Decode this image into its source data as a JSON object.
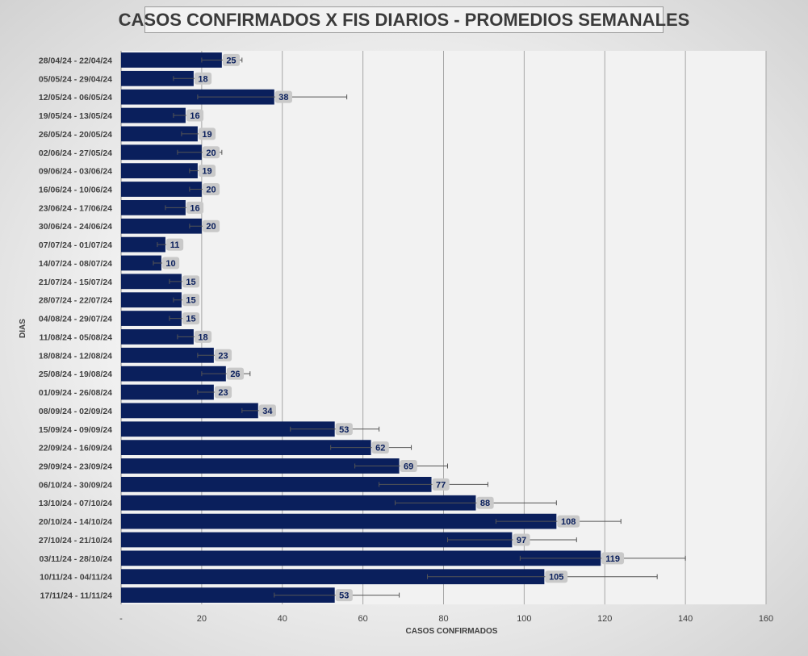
{
  "chart_data": {
    "type": "bar",
    "orientation": "horizontal",
    "title": "CASOS CONFIRMADOS X FIS DIARIOS - PROMEDIOS SEMANALES",
    "xlabel": "CASOS CONFIRMADOS",
    "ylabel": "DIAS",
    "xlim": [
      0,
      160
    ],
    "x_ticks": [
      "-",
      "20",
      "40",
      "60",
      "80",
      "100",
      "120",
      "140",
      "160"
    ],
    "grid": "vertical",
    "legend": "none",
    "bar_color": "#0a1f5c",
    "plot_background": "#f2f2f2",
    "categories": [
      "28/04/24 - 22/04/24",
      "05/05/24 - 29/04/24",
      "12/05/24 - 06/05/24",
      "19/05/24 - 13/05/24",
      "26/05/24 - 20/05/24",
      "02/06/24 - 27/05/24",
      "09/06/24 - 03/06/24",
      "16/06/24 - 10/06/24",
      "23/06/24 - 17/06/24",
      "30/06/24 - 24/06/24",
      "07/07/24 - 01/07/24",
      "14/07/24 - 08/07/24",
      "21/07/24 - 15/07/24",
      "28/07/24 - 22/07/24",
      "04/08/24 - 29/07/24",
      "11/08/24 - 05/08/24",
      "18/08/24 - 12/08/24",
      "25/08/24 - 19/08/24",
      "01/09/24 - 26/08/24",
      "08/09/24 - 02/09/24",
      "15/09/24 - 09/09/24",
      "22/09/24 - 16/09/24",
      "29/09/24 - 23/09/24",
      "06/10/24 - 30/09/24",
      "13/10/24 - 07/10/24",
      "20/10/24 - 14/10/24",
      "27/10/24 - 21/10/24",
      "03/11/24 - 28/10/24",
      "10/11/24 - 04/11/24",
      "17/11/24 - 11/11/24"
    ],
    "values": [
      25,
      18,
      38,
      16,
      19,
      20,
      19,
      20,
      16,
      20,
      11,
      10,
      15,
      15,
      15,
      18,
      23,
      26,
      23,
      34,
      53,
      62,
      69,
      77,
      88,
      108,
      97,
      119,
      105,
      53
    ],
    "error_low": [
      20,
      13,
      19,
      13,
      15,
      14,
      17,
      17,
      11,
      17,
      9,
      8,
      12,
      13,
      12,
      14,
      19,
      20,
      19,
      30,
      42,
      52,
      58,
      64,
      68,
      93,
      81,
      99,
      76,
      38
    ],
    "error_high": [
      30,
      20,
      56,
      19,
      21,
      25,
      21,
      21,
      20,
      22,
      13,
      12,
      17,
      17,
      16,
      20,
      25,
      32,
      25,
      36,
      64,
      72,
      81,
      91,
      108,
      124,
      113,
      140,
      133,
      69
    ]
  }
}
